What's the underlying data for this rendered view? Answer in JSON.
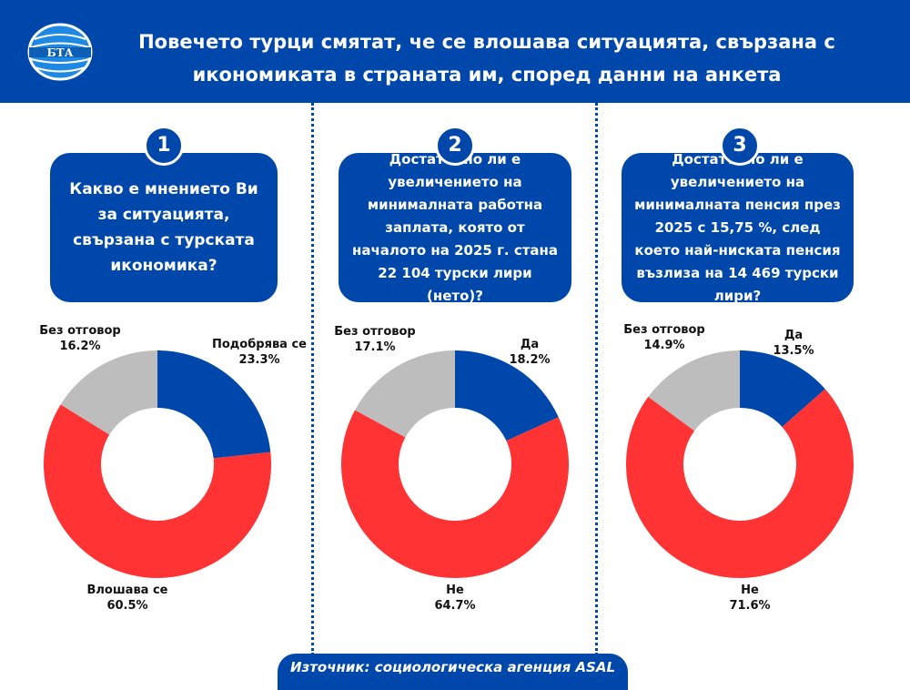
{
  "header": {
    "logo_text": "БТА",
    "title_line1": "Повечето турци смятат, че се влошава ситуацията, свързана с",
    "title_line2": "икономиката в страната им, според данни на анкета"
  },
  "colors": {
    "brand_blue": "#0047ab",
    "red": "#ff3333",
    "gray": "#bdbdbd"
  },
  "chart_data": [
    {
      "type": "pie",
      "number": "1",
      "question": "Какво е мнението Ви за ситуацията, свързана с турската икономика?",
      "categories": [
        "Подобрява се",
        "Влошава се",
        "Без отговор"
      ],
      "values": [
        23.3,
        60.5,
        16.2
      ],
      "value_labels": [
        "23.3%",
        "60.5%",
        "16.2%"
      ],
      "colors": [
        "#0047ab",
        "#ff3333",
        "#bdbdbd"
      ],
      "donut": true
    },
    {
      "type": "pie",
      "number": "2",
      "question": "Достатъчно ли е увеличението на минималната работна заплата, която от началото на 2025 г. стана 22 104 турски лири (нето)?",
      "categories": [
        "Да",
        "Не",
        "Без отговор"
      ],
      "values": [
        18.2,
        64.7,
        17.1
      ],
      "value_labels": [
        "18.2%",
        "64.7%",
        "17.1%"
      ],
      "colors": [
        "#0047ab",
        "#ff3333",
        "#bdbdbd"
      ],
      "donut": true
    },
    {
      "type": "pie",
      "number": "3",
      "question": "Достатъчно ли е увеличението на минималната пенсия през 2025 с 15,75 %, след което най-ниската пенсия възлиза на 14 469 турски лири?",
      "categories": [
        "Да",
        "Не",
        "Без отговор"
      ],
      "values": [
        13.5,
        71.6,
        14.9
      ],
      "value_labels": [
        "13.5%",
        "71.6%",
        "14.9%"
      ],
      "colors": [
        "#0047ab",
        "#ff3333",
        "#bdbdbd"
      ],
      "donut": true
    }
  ],
  "footer": {
    "source": "Източник: социологическа агенция ASAL"
  }
}
